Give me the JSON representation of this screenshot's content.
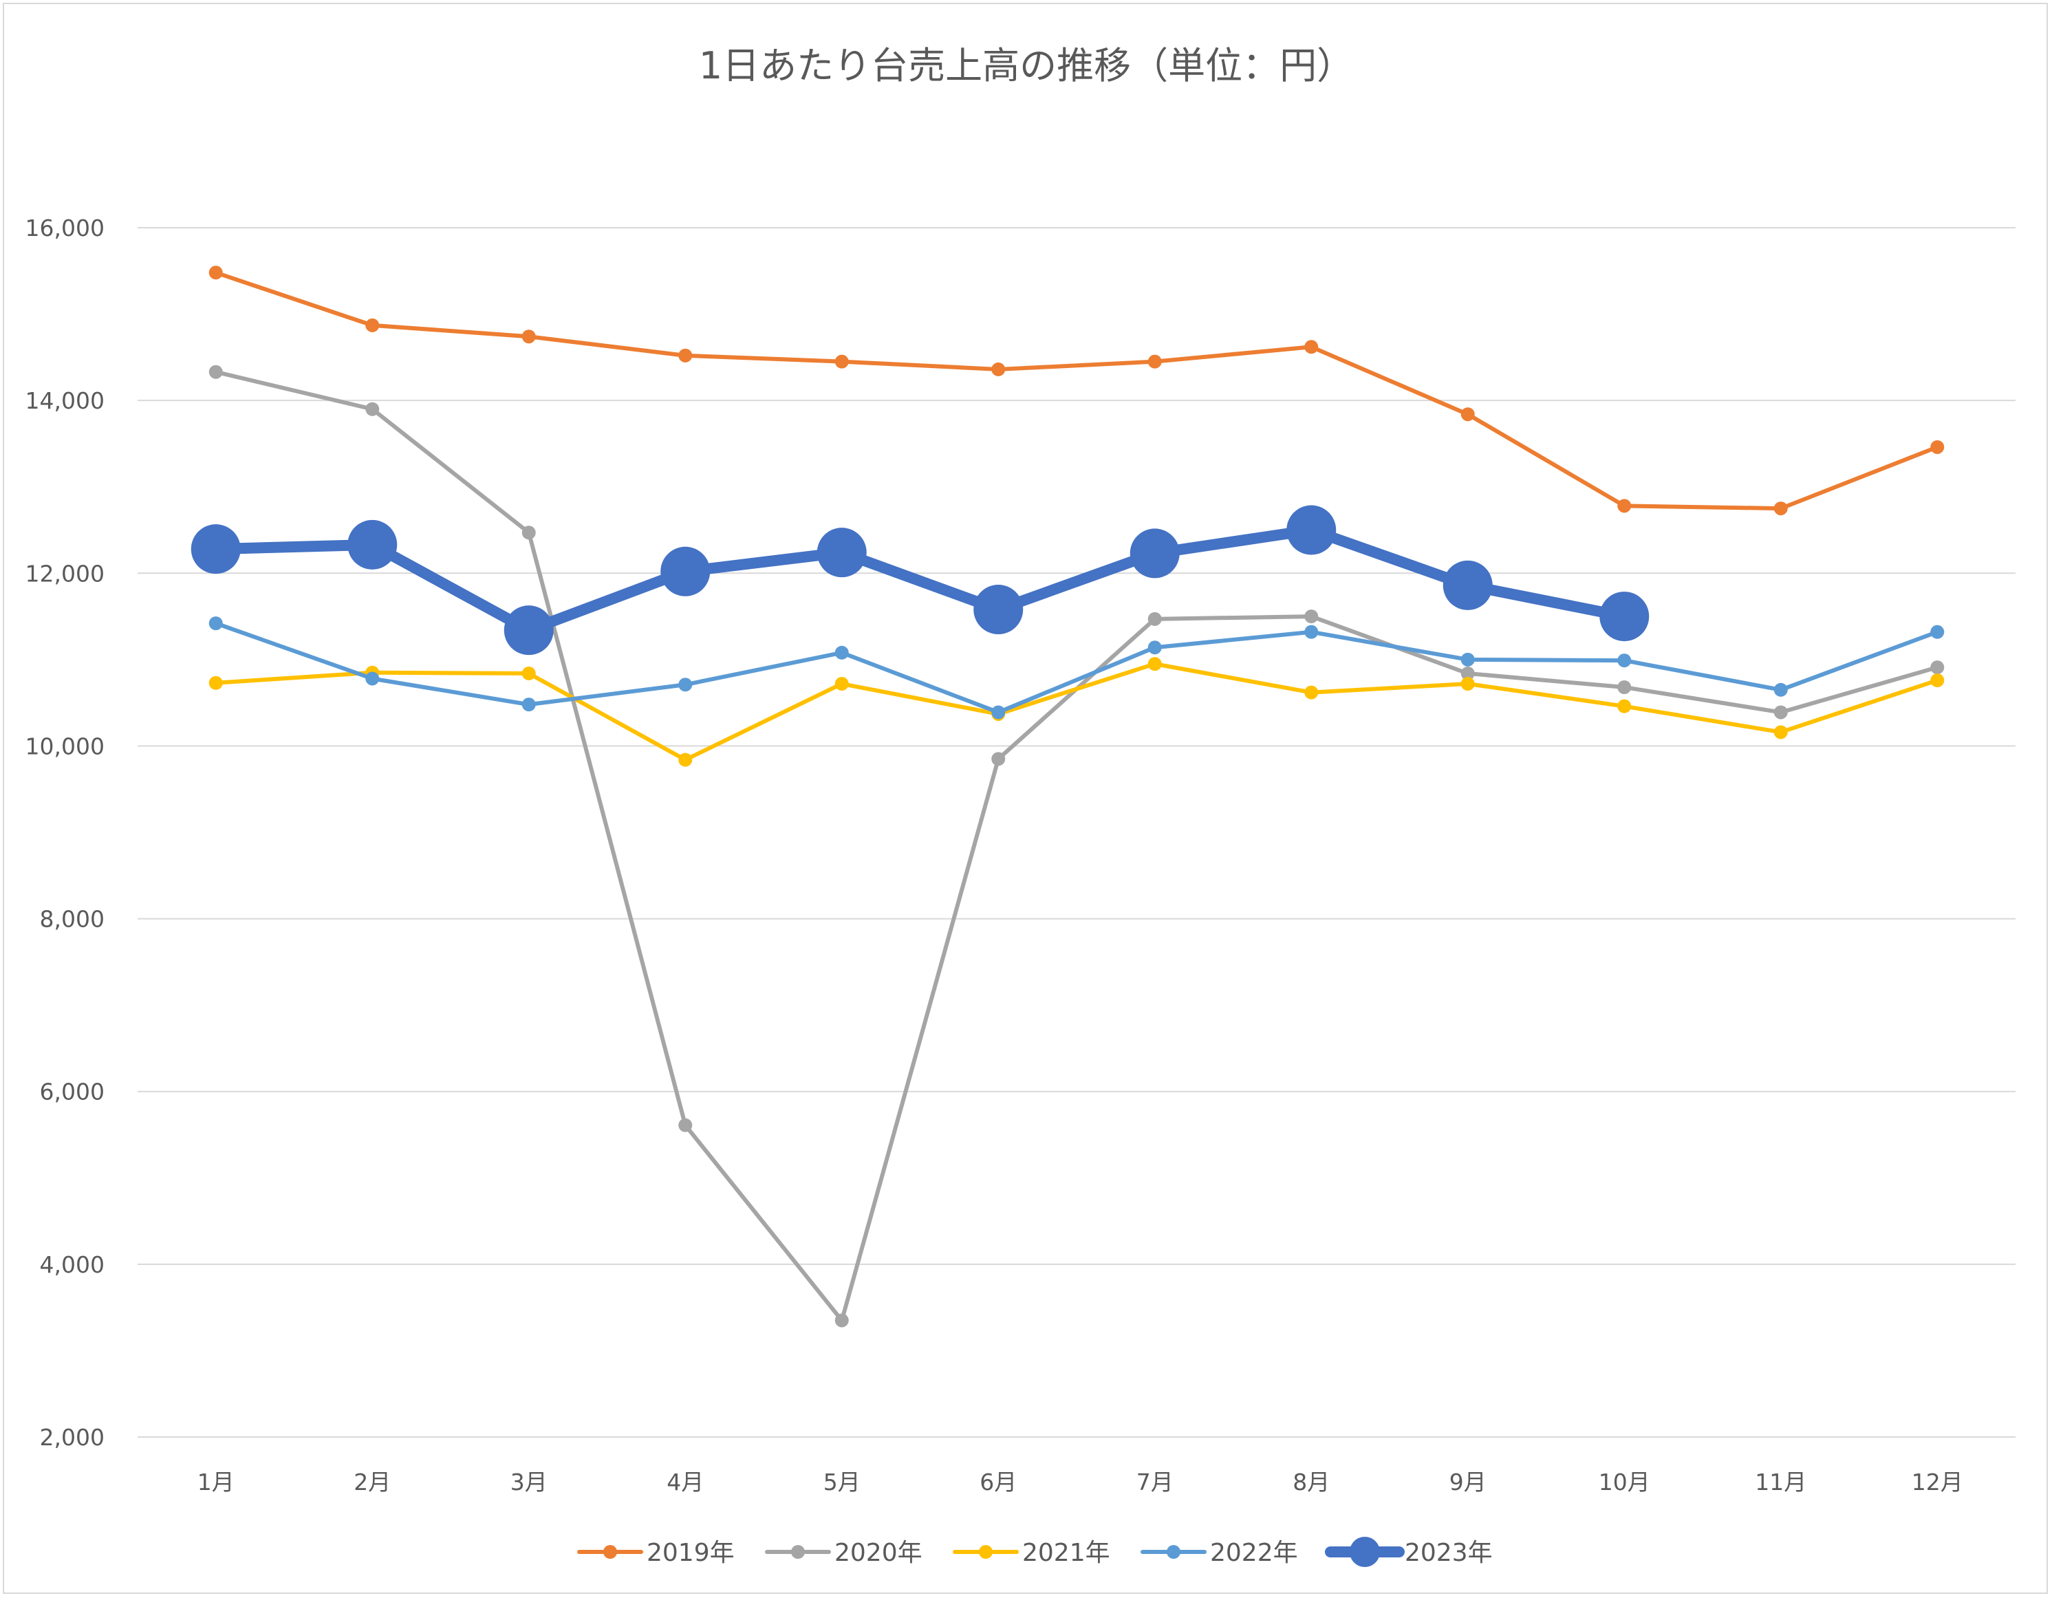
{
  "chart_data": {
    "type": "line",
    "title": "1日あたり台売上高の推移（単位：円）",
    "xlabel": "",
    "ylabel": "",
    "categories": [
      "1月",
      "2月",
      "3月",
      "4月",
      "5月",
      "6月",
      "7月",
      "8月",
      "9月",
      "10月",
      "11月",
      "12月"
    ],
    "ylim": [
      2000,
      16000
    ],
    "yticks": [
      2000,
      4000,
      6000,
      8000,
      10000,
      12000,
      14000,
      16000
    ],
    "ytick_labels": [
      "2,000",
      "4,000",
      "6,000",
      "8,000",
      "10,000",
      "12,000",
      "14,000",
      "16,000"
    ],
    "grid": "horizontal",
    "legend_position": "bottom",
    "series": [
      {
        "name": "2019年",
        "color": "#ED7D31",
        "emphasis": false,
        "values": [
          15480,
          14870,
          14740,
          14520,
          14450,
          14360,
          14450,
          14620,
          13840,
          12780,
          12750,
          13460
        ]
      },
      {
        "name": "2020年",
        "color": "#A5A5A5",
        "emphasis": false,
        "values": [
          14330,
          13900,
          12470,
          5610,
          3350,
          9850,
          11470,
          11500,
          10840,
          10680,
          10390,
          10910
        ]
      },
      {
        "name": "2021年",
        "color": "#FFC000",
        "emphasis": false,
        "values": [
          10730,
          10850,
          10840,
          9840,
          10720,
          10370,
          10950,
          10620,
          10720,
          10460,
          10160,
          10760
        ]
      },
      {
        "name": "2022年",
        "color": "#5B9BD5",
        "emphasis": false,
        "values": [
          11420,
          10780,
          10480,
          10710,
          11080,
          10390,
          11140,
          11320,
          11000,
          10990,
          10650,
          11320
        ]
      },
      {
        "name": "2023年",
        "color": "#4472C4",
        "emphasis": true,
        "values": [
          12280,
          12330,
          11340,
          12020,
          12240,
          11580,
          12230,
          12500,
          11860,
          11500,
          null,
          null
        ]
      }
    ]
  }
}
